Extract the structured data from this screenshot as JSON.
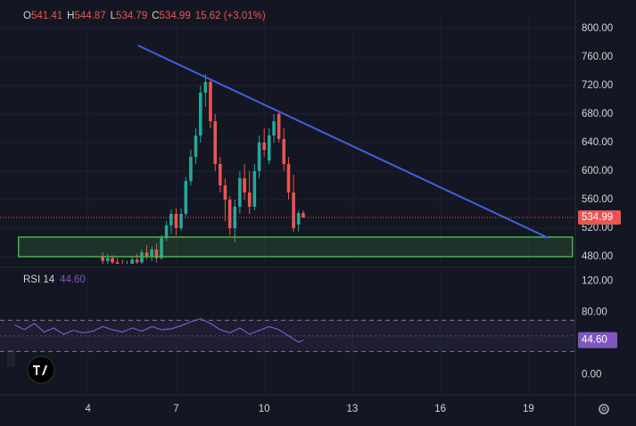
{
  "chart_data": [
    {
      "type": "candlestick",
      "header": {
        "labels": [
          "O",
          "H",
          "L",
          "C"
        ],
        "change_text": "15.62 (+3.01%)"
      },
      "x": [
        4.5,
        4.67,
        4.83,
        5.0,
        5.17,
        5.33,
        5.5,
        5.67,
        5.83,
        6.0,
        6.17,
        6.33,
        6.5,
        6.67,
        6.83,
        7.0,
        7.17,
        7.33,
        7.5,
        7.67,
        7.83,
        8.0,
        8.17,
        8.33,
        8.5,
        8.67,
        8.83,
        9.0,
        9.17,
        9.33,
        9.5,
        9.67,
        9.83,
        10.0,
        10.17,
        10.33,
        10.5,
        10.67,
        10.83,
        11.0,
        11.17,
        11.33
      ],
      "open": [
        480,
        474,
        478,
        472,
        470,
        466,
        470,
        476,
        472,
        486,
        480,
        490,
        478,
        506,
        524,
        540,
        520,
        540,
        586,
        620,
        650,
        710,
        725,
        670,
        610,
        580,
        560,
        520,
        550,
        590,
        570,
        550,
        600,
        640,
        615,
        650,
        680,
        645,
        610,
        570,
        525,
        541.41
      ],
      "high": [
        486,
        484,
        482,
        478,
        476,
        474,
        480,
        484,
        490,
        496,
        494,
        498,
        510,
        530,
        546,
        548,
        548,
        592,
        630,
        660,
        720,
        736,
        730,
        680,
        620,
        590,
        565,
        560,
        600,
        610,
        600,
        610,
        650,
        660,
        660,
        680,
        684,
        660,
        620,
        595,
        545,
        544.87
      ],
      "low": [
        470,
        468,
        470,
        462,
        460,
        458,
        462,
        468,
        470,
        476,
        474,
        472,
        476,
        502,
        512,
        510,
        516,
        536,
        580,
        610,
        640,
        690,
        660,
        600,
        570,
        530,
        510,
        500,
        540,
        560,
        540,
        545,
        590,
        620,
        610,
        640,
        640,
        600,
        560,
        515,
        515,
        534.79
      ],
      "close": [
        474,
        478,
        472,
        470,
        466,
        470,
        476,
        472,
        486,
        480,
        490,
        478,
        506,
        524,
        540,
        520,
        540,
        586,
        620,
        650,
        710,
        725,
        670,
        610,
        580,
        560,
        520,
        550,
        590,
        570,
        550,
        600,
        640,
        630,
        650,
        670,
        645,
        610,
        570,
        520,
        541,
        534.99
      ],
      "colors": {
        "up": "#26a69a",
        "down": "#ef5350"
      },
      "xlim": [
        1,
        20.6
      ],
      "xticks": [
        4,
        7,
        10,
        13,
        16,
        19
      ],
      "ylim": [
        470,
        815
      ],
      "yticks": [
        {
          "value": 480,
          "label": "480.00"
        },
        {
          "value": 520,
          "label": "520.00"
        },
        {
          "value": 560,
          "label": "560.00"
        },
        {
          "value": 600,
          "label": "600.00"
        },
        {
          "value": 640,
          "label": "640.00"
        },
        {
          "value": 680,
          "label": "680.00"
        },
        {
          "value": 720,
          "label": "720.00"
        },
        {
          "value": 760,
          "label": "760.00"
        },
        {
          "value": 800,
          "label": "800.00"
        }
      ],
      "grid": true,
      "trendline": {
        "x": [
          5.7,
          19.68
        ],
        "y": [
          776.25,
          506.25
        ],
        "color": "#3f5fe0"
      },
      "zone": {
        "x": [
          1.63,
          20.5
        ],
        "y": [
          480,
          507.5
        ],
        "color": "#4caf50"
      }
    },
    {
      "type": "line",
      "name": "RSI 14",
      "current": {
        "value": 44.6,
        "label": "44.60"
      },
      "color": "#7e57c2",
      "x": [
        1.5,
        1.83,
        2.17,
        2.5,
        2.83,
        3.17,
        3.5,
        3.83,
        4.17,
        4.5,
        4.83,
        5.17,
        5.5,
        5.83,
        6.17,
        6.5,
        6.83,
        7.17,
        7.5,
        7.83,
        8.17,
        8.5,
        8.83,
        9.17,
        9.5,
        9.83,
        10.17,
        10.5,
        10.83,
        11.17,
        11.33
      ],
      "values": [
        64,
        58,
        66,
        55,
        60,
        52,
        57,
        54,
        56,
        62,
        58,
        55,
        60,
        56,
        62,
        58,
        59,
        63,
        68,
        72,
        66,
        58,
        54,
        60,
        52,
        57,
        62,
        58,
        50,
        42,
        44.6
      ],
      "xlim": [
        1,
        20.6
      ],
      "ylim": [
        -22,
        132
      ],
      "yticks": [
        {
          "value": 0,
          "label": "0.00"
        },
        {
          "value": 80,
          "label": "80.00"
        },
        {
          "value": 120,
          "label": "120.00"
        }
      ],
      "bands": [
        30,
        70
      ],
      "midline": 50
    }
  ]
}
